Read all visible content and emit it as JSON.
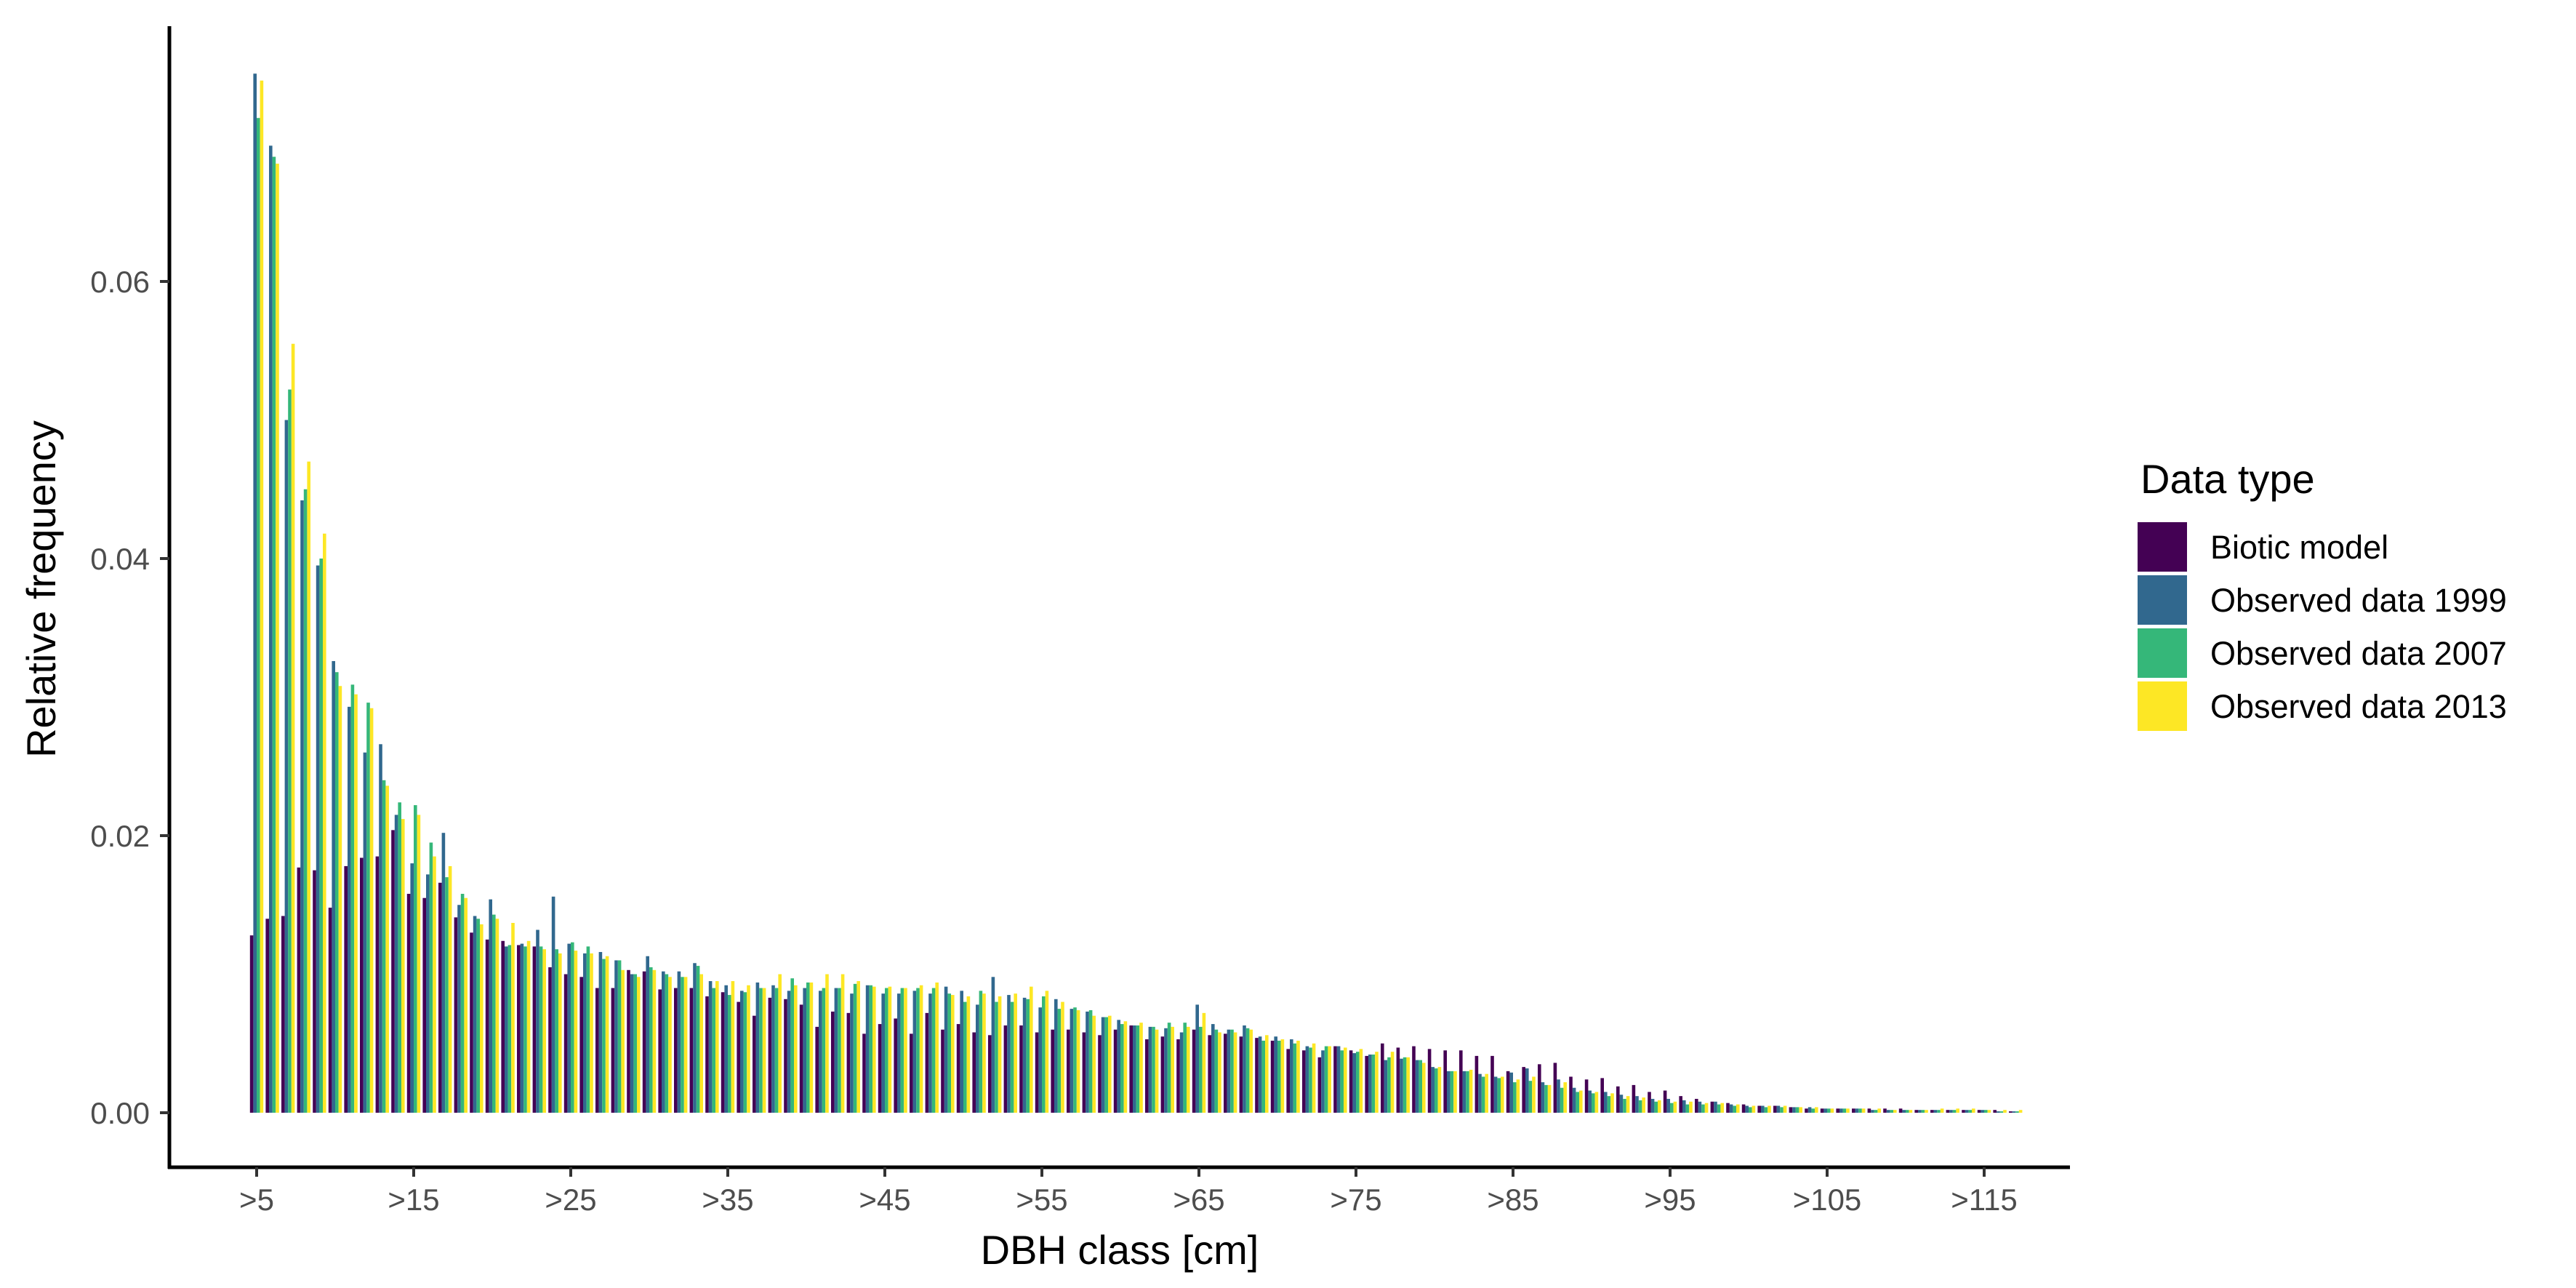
{
  "chart_data": {
    "type": "bar",
    "xlabel": "DBH class [cm]",
    "ylabel": "Relative frequency",
    "ylim": [
      -0.0036,
      0.0785
    ],
    "yticks": [
      0.0,
      0.02,
      0.04,
      0.06
    ],
    "ytick_labels": [
      "0.00",
      "0.02",
      "0.04",
      "0.06"
    ],
    "xtick_labels": [
      ">5",
      ">15",
      ">25",
      ">35",
      ">45",
      ">55",
      ">65",
      ">75",
      ">85",
      ">95",
      ">105",
      ">115"
    ],
    "xtick_class_values": [
      5,
      15,
      25,
      35,
      45,
      55,
      65,
      75,
      85,
      95,
      105,
      115
    ],
    "grid": false,
    "legend": {
      "title": "Data type",
      "position": "right"
    },
    "categories": [
      5,
      6,
      7,
      8,
      9,
      10,
      11,
      12,
      13,
      14,
      15,
      16,
      17,
      18,
      19,
      20,
      21,
      22,
      23,
      24,
      25,
      26,
      27,
      28,
      29,
      30,
      31,
      32,
      33,
      34,
      35,
      36,
      37,
      38,
      39,
      40,
      41,
      42,
      43,
      44,
      45,
      46,
      47,
      48,
      49,
      50,
      51,
      52,
      53,
      54,
      55,
      56,
      57,
      58,
      59,
      60,
      61,
      62,
      63,
      64,
      65,
      66,
      67,
      68,
      69,
      70,
      71,
      72,
      73,
      74,
      75,
      76,
      77,
      78,
      79,
      80,
      81,
      82,
      83,
      84,
      85,
      86,
      87,
      88,
      89,
      90,
      91,
      92,
      93,
      94,
      95,
      96,
      97,
      98,
      99,
      100,
      101,
      102,
      103,
      104,
      105,
      106,
      107,
      108,
      109,
      110,
      111,
      112,
      113,
      114,
      115,
      116,
      117
    ],
    "series": [
      {
        "name": "Biotic model",
        "color": "#440154",
        "values": [
          0.0128,
          0.014,
          0.0142,
          0.0177,
          0.0175,
          0.0148,
          0.0178,
          0.0184,
          0.0185,
          0.0204,
          0.0158,
          0.0155,
          0.0166,
          0.0141,
          0.013,
          0.0125,
          0.0124,
          0.0121,
          0.012,
          0.0105,
          0.01,
          0.0098,
          0.009,
          0.009,
          0.0103,
          0.0102,
          0.0089,
          0.009,
          0.009,
          0.0084,
          0.0087,
          0.008,
          0.007,
          0.0083,
          0.0082,
          0.0078,
          0.0062,
          0.0073,
          0.0072,
          0.0057,
          0.0064,
          0.0068,
          0.0057,
          0.0072,
          0.006,
          0.0064,
          0.0058,
          0.0056,
          0.0063,
          0.0063,
          0.0058,
          0.006,
          0.006,
          0.0058,
          0.0056,
          0.006,
          0.0063,
          0.0053,
          0.0055,
          0.0053,
          0.006,
          0.0056,
          0.0057,
          0.0055,
          0.0054,
          0.0052,
          0.0046,
          0.0045,
          0.004,
          0.0048,
          0.0045,
          0.0041,
          0.005,
          0.0047,
          0.0048,
          0.0046,
          0.0045,
          0.0045,
          0.0041,
          0.0041,
          0.003,
          0.0033,
          0.0035,
          0.0036,
          0.0026,
          0.0024,
          0.0025,
          0.0019,
          0.002,
          0.0015,
          0.0016,
          0.0012,
          0.001,
          0.0008,
          0.0007,
          0.0006,
          0.0005,
          0.0005,
          0.0004,
          0.0003,
          0.0003,
          0.0003,
          0.0003,
          0.0003,
          0.0003,
          0.0003,
          0.0002,
          0.0002,
          0.0002,
          0.0002,
          0.0002,
          0.0002,
          0.0001
        ]
      },
      {
        "name": "Observed data 1999",
        "color": "#31688e",
        "values": [
          0.075,
          0.0698,
          0.05,
          0.0442,
          0.0395,
          0.0326,
          0.0293,
          0.026,
          0.0266,
          0.0215,
          0.018,
          0.0172,
          0.0202,
          0.015,
          0.0142,
          0.0154,
          0.012,
          0.0122,
          0.0132,
          0.0156,
          0.0122,
          0.0115,
          0.0116,
          0.011,
          0.01,
          0.0113,
          0.0102,
          0.0102,
          0.0108,
          0.0095,
          0.0092,
          0.0088,
          0.0094,
          0.0092,
          0.0088,
          0.009,
          0.0088,
          0.009,
          0.0086,
          0.0092,
          0.0086,
          0.0086,
          0.0088,
          0.0086,
          0.0091,
          0.0088,
          0.0078,
          0.0098,
          0.0085,
          0.0083,
          0.0076,
          0.0082,
          0.0075,
          0.0073,
          0.0069,
          0.0067,
          0.0063,
          0.0062,
          0.0061,
          0.0058,
          0.0078,
          0.0064,
          0.006,
          0.0063,
          0.0055,
          0.0055,
          0.0053,
          0.0048,
          0.0045,
          0.0048,
          0.0043,
          0.0042,
          0.0038,
          0.0039,
          0.0038,
          0.0033,
          0.003,
          0.003,
          0.0028,
          0.0026,
          0.0029,
          0.0032,
          0.0022,
          0.0024,
          0.0018,
          0.0016,
          0.0015,
          0.0013,
          0.0012,
          0.001,
          0.001,
          0.0009,
          0.0008,
          0.0008,
          0.0006,
          0.0005,
          0.0005,
          0.0005,
          0.0004,
          0.0004,
          0.0003,
          0.0003,
          0.0003,
          0.0002,
          0.0002,
          0.0002,
          0.0002,
          0.0002,
          0.0002,
          0.0002,
          0.0002,
          0.0001,
          0.0001
        ]
      },
      {
        "name": "Observed data 2007",
        "color": "#35b779",
        "values": [
          0.0718,
          0.069,
          0.0522,
          0.045,
          0.04,
          0.0318,
          0.0309,
          0.0296,
          0.024,
          0.0224,
          0.0222,
          0.0195,
          0.017,
          0.0158,
          0.014,
          0.0143,
          0.0121,
          0.012,
          0.012,
          0.0118,
          0.0123,
          0.012,
          0.0111,
          0.011,
          0.01,
          0.0105,
          0.01,
          0.0098,
          0.0106,
          0.009,
          0.0085,
          0.0087,
          0.009,
          0.009,
          0.0097,
          0.0094,
          0.009,
          0.009,
          0.0093,
          0.0092,
          0.009,
          0.009,
          0.009,
          0.009,
          0.0086,
          0.008,
          0.0088,
          0.008,
          0.008,
          0.0082,
          0.0084,
          0.0075,
          0.0076,
          0.0074,
          0.0069,
          0.0064,
          0.0063,
          0.0062,
          0.0065,
          0.0065,
          0.0062,
          0.006,
          0.006,
          0.0061,
          0.0052,
          0.0052,
          0.005,
          0.0047,
          0.0048,
          0.0045,
          0.0044,
          0.0042,
          0.004,
          0.004,
          0.0038,
          0.0032,
          0.003,
          0.003,
          0.0026,
          0.0025,
          0.0022,
          0.0023,
          0.002,
          0.0018,
          0.0015,
          0.0014,
          0.0012,
          0.001,
          0.0009,
          0.0008,
          0.0007,
          0.0006,
          0.0006,
          0.0006,
          0.0005,
          0.0004,
          0.0004,
          0.0004,
          0.0004,
          0.0003,
          0.0003,
          0.0003,
          0.0003,
          0.0002,
          0.0002,
          0.0002,
          0.0002,
          0.0002,
          0.0002,
          0.0002,
          0.0002,
          0.0001,
          0.0001
        ]
      },
      {
        "name": "Observed data 2013",
        "color": "#fde725",
        "values": [
          0.0745,
          0.0685,
          0.0555,
          0.047,
          0.0418,
          0.0308,
          0.0302,
          0.0292,
          0.0236,
          0.0212,
          0.0215,
          0.0185,
          0.0178,
          0.0155,
          0.0136,
          0.014,
          0.0137,
          0.0124,
          0.0118,
          0.0115,
          0.0117,
          0.0115,
          0.0113,
          0.0103,
          0.0098,
          0.0103,
          0.0098,
          0.0098,
          0.01,
          0.0095,
          0.0095,
          0.0092,
          0.009,
          0.01,
          0.0092,
          0.0094,
          0.01,
          0.01,
          0.0095,
          0.0091,
          0.0091,
          0.009,
          0.0092,
          0.0094,
          0.0085,
          0.0084,
          0.0086,
          0.0084,
          0.0086,
          0.0091,
          0.0088,
          0.008,
          0.0074,
          0.007,
          0.007,
          0.0066,
          0.0065,
          0.006,
          0.0062,
          0.0062,
          0.0072,
          0.0058,
          0.0058,
          0.006,
          0.0056,
          0.0053,
          0.0052,
          0.005,
          0.0048,
          0.0047,
          0.0046,
          0.0044,
          0.0044,
          0.004,
          0.0036,
          0.0033,
          0.003,
          0.0031,
          0.0028,
          0.0026,
          0.0024,
          0.0026,
          0.002,
          0.0022,
          0.0016,
          0.0015,
          0.0014,
          0.0012,
          0.0011,
          0.0009,
          0.0008,
          0.0008,
          0.0007,
          0.0007,
          0.0006,
          0.0005,
          0.0005,
          0.0005,
          0.0004,
          0.0004,
          0.0003,
          0.0003,
          0.0003,
          0.0003,
          0.0002,
          0.0002,
          0.0002,
          0.0003,
          0.0003,
          0.0003,
          0.0002,
          0.0002,
          0.0002
        ]
      }
    ]
  }
}
